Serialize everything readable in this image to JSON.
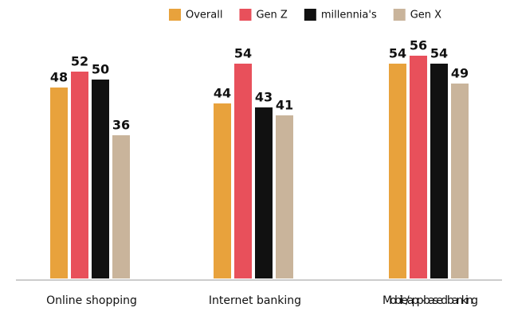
{
  "chart_data": {
    "type": "bar",
    "categories": [
      "Online shopping",
      "Internet banking",
      "Mobile/app-based banking"
    ],
    "series": [
      {
        "name": "Overall",
        "color": "#e8a23c",
        "values": [
          48,
          44,
          54
        ]
      },
      {
        "name": "Gen Z",
        "color": "#e8505b",
        "values": [
          52,
          54,
          56
        ]
      },
      {
        "name": "millennia's",
        "color": "#111111",
        "values": [
          50,
          43,
          54
        ]
      },
      {
        "name": "Gen X",
        "color": "#c9b49b",
        "values": [
          36,
          41,
          49
        ]
      }
    ]
  }
}
